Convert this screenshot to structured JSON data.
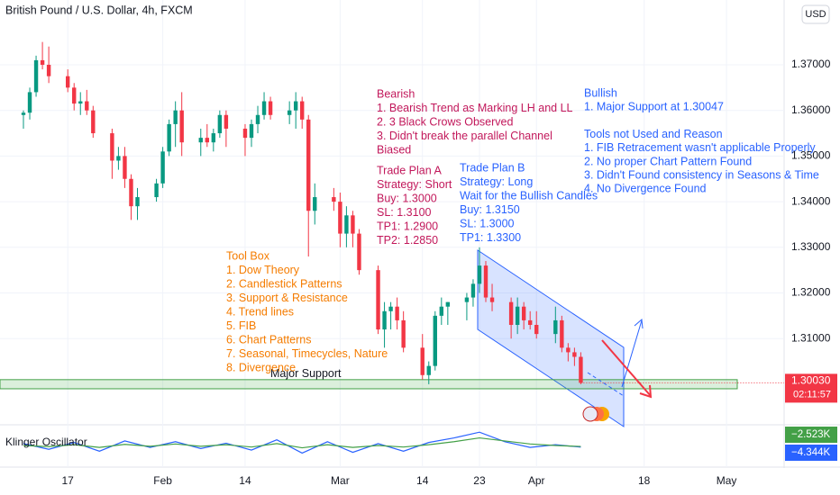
{
  "chart_data": {
    "type": "candlestick",
    "title": "British Pound / U.S. Dollar, 4h, FXCM",
    "currency": "USD",
    "x": [
      10,
      11,
      12,
      13,
      14,
      17,
      18,
      19,
      20,
      21,
      24,
      25,
      26,
      27,
      28,
      31,
      32,
      33,
      34,
      35,
      38,
      39,
      40,
      41,
      42,
      45,
      46,
      47,
      48,
      49,
      52,
      53,
      54,
      55,
      56,
      59,
      60,
      61,
      62,
      63,
      66,
      67,
      68,
      69,
      70,
      73,
      74,
      75,
      76,
      77,
      80,
      81,
      82,
      83,
      84,
      87,
      88,
      89,
      90,
      91,
      94,
      95,
      96,
      97,
      98
    ],
    "open": [
      1.359,
      1.3595,
      1.364,
      1.371,
      1.37,
      1.3675,
      1.365,
      1.3615,
      1.362,
      1.36,
      1.355,
      1.349,
      1.35,
      1.345,
      1.339,
      1.341,
      1.344,
      1.351,
      1.357,
      1.36,
      1.353,
      1.354,
      1.353,
      1.355,
      1.359,
      1.356,
      1.354,
      1.357,
      1.359,
      1.362,
      1.359,
      1.36,
      1.362,
      1.358,
      1.338,
      1.341,
      1.34,
      1.333,
      1.337,
      1.333,
      1.325,
      1.312,
      1.316,
      1.317,
      1.314,
      1.308,
      1.302,
      1.304,
      1.315,
      1.317,
      1.318,
      1.319,
      1.322,
      1.326,
      1.319,
      1.318,
      1.313,
      1.317,
      1.314,
      1.313,
      1.311,
      1.314,
      1.308,
      1.307,
      1.306
    ],
    "high": [
      1.36,
      1.365,
      1.372,
      1.375,
      1.374,
      1.369,
      1.366,
      1.364,
      1.3645,
      1.361,
      1.356,
      1.352,
      1.352,
      1.346,
      1.343,
      1.345,
      1.352,
      1.358,
      1.362,
      1.364,
      1.356,
      1.357,
      1.356,
      1.36,
      1.36,
      1.357,
      1.358,
      1.361,
      1.364,
      1.363,
      1.362,
      1.364,
      1.363,
      1.359,
      1.344,
      1.343,
      1.342,
      1.339,
      1.338,
      1.334,
      1.326,
      1.318,
      1.318,
      1.319,
      1.316,
      1.311,
      1.305,
      1.316,
      1.319,
      1.318,
      1.32,
      1.323,
      1.33,
      1.327,
      1.322,
      1.319,
      1.319,
      1.318,
      1.316,
      1.316,
      1.317,
      1.315,
      1.309,
      1.308,
      1.307
    ],
    "low": [
      1.356,
      1.358,
      1.363,
      1.369,
      1.366,
      1.364,
      1.36,
      1.359,
      1.359,
      1.354,
      1.345,
      1.347,
      1.343,
      1.336,
      1.336,
      1.34,
      1.343,
      1.35,
      1.352,
      1.35,
      1.35,
      1.352,
      1.351,
      1.354,
      1.352,
      1.35,
      1.352,
      1.355,
      1.358,
      1.358,
      1.357,
      1.356,
      1.356,
      1.328,
      1.335,
      1.338,
      1.33,
      1.33,
      1.33,
      1.324,
      1.311,
      1.308,
      1.312,
      1.312,
      1.307,
      1.301,
      1.3,
      1.303,
      1.313,
      1.313,
      1.314,
      1.317,
      1.32,
      1.318,
      1.316,
      1.31,
      1.311,
      1.312,
      1.312,
      1.31,
      1.309,
      1.307,
      1.305,
      1.304,
      1.3
    ],
    "close": [
      1.3595,
      1.364,
      1.371,
      1.37,
      1.3675,
      1.365,
      1.3615,
      1.362,
      1.36,
      1.355,
      1.349,
      1.35,
      1.345,
      1.339,
      1.341,
      1.344,
      1.351,
      1.357,
      1.36,
      1.353,
      1.354,
      1.353,
      1.355,
      1.359,
      1.356,
      1.354,
      1.357,
      1.359,
      1.362,
      1.359,
      1.36,
      1.362,
      1.358,
      1.338,
      1.341,
      1.34,
      1.333,
      1.337,
      1.333,
      1.325,
      1.312,
      1.316,
      1.317,
      1.314,
      1.308,
      1.302,
      1.304,
      1.315,
      1.317,
      1.318,
      1.319,
      1.322,
      1.326,
      1.319,
      1.318,
      1.313,
      1.317,
      1.314,
      1.313,
      1.311,
      1.314,
      1.308,
      1.307,
      1.306,
      1.3003
    ],
    "up_color": "#089981",
    "down_color": "#f23645",
    "xlim": [
      6.3,
      130.1
    ],
    "xticks": [
      {
        "value": 17,
        "label": "17"
      },
      {
        "value": 32,
        "label": "Feb"
      },
      {
        "value": 45,
        "label": "14"
      },
      {
        "value": 60,
        "label": "Mar"
      },
      {
        "value": 73,
        "label": "14"
      },
      {
        "value": 82,
        "label": "23"
      },
      {
        "value": 91,
        "label": "Apr"
      },
      {
        "value": 108,
        "label": "18"
      },
      {
        "value": 121,
        "label": "May"
      }
    ],
    "ylim": [
      1.2915,
      1.3842
    ],
    "yticks": [
      {
        "value": 1.31,
        "label": "1.31000"
      },
      {
        "value": 1.32,
        "label": "1.32000"
      },
      {
        "value": 1.33,
        "label": "1.33000"
      },
      {
        "value": 1.34,
        "label": "1.34000"
      },
      {
        "value": 1.35,
        "label": "1.35000"
      },
      {
        "value": 1.36,
        "label": "1.36000"
      },
      {
        "value": 1.37,
        "label": "1.37000"
      }
    ],
    "grid": true,
    "last_price": {
      "value": 1.3003,
      "label": "1.30030",
      "countdown": "02:11:57"
    },
    "support_zone": {
      "low": 1.299,
      "high": 1.301,
      "label": "Major Support"
    },
    "annotations": [
      {
        "lines": [
          "Bearish",
          "1. Bearish Trend as Marking LH and LL",
          "2. 3 Black Crows Observed",
          "3. Didn't break the parallel Channel",
          "Biased"
        ],
        "color": "#c2185b"
      },
      {
        "lines": [
          "Trade Plan A",
          "Strategy: Short",
          "Buy: 1.3000",
          "SL: 1.3100",
          "TP1: 1.2900",
          "TP2: 1.2850"
        ],
        "color": "#c2185b"
      },
      {
        "lines": [
          "Trade Plan B",
          "Strategy: Long",
          "Wait for the Bullish Candles",
          "Buy: 1.3150",
          "SL: 1.3000",
          "TP1: 1.3300"
        ],
        "color": "#2962ff"
      },
      {
        "lines": [
          "Bullish",
          "1. Major Support at 1.30047",
          "",
          "Tools not Used and Reason",
          "1. FIB Retracement wasn't applicable Properly",
          "2. No proper Chart Pattern Found",
          "3. Didn't Found consistency in Seasons & Time",
          "4. No Divergence Found"
        ],
        "color": "#2962ff"
      },
      {
        "lines": [
          "Tool Box",
          "1. Dow Theory",
          "2. Candlestick Patterns",
          "3. Support & Resistance",
          "4. Trend lines",
          "5. FIB",
          "6. Chart Patterns",
          "7. Seasonal, Timecycles, Nature",
          "8. Divergence"
        ],
        "color": "#f57c00"
      }
    ],
    "oscillator": {
      "name": "Klinger Oscillator",
      "ylim": [
        -45,
        45
      ],
      "x": [
        10,
        14,
        18,
        22,
        26,
        30,
        34,
        38,
        42,
        46,
        50,
        54,
        58,
        62,
        66,
        70,
        74,
        78,
        82,
        86,
        90,
        94,
        98
      ],
      "series": [
        {
          "color": "#2962ff",
          "values": [
            5,
            -10,
            8,
            -15,
            12,
            -5,
            10,
            -8,
            6,
            -12,
            15,
            -20,
            10,
            -18,
            5,
            -15,
            8,
            20,
            35,
            10,
            -5,
            2,
            -4.344
          ],
          "last_label": "−4.344K"
        },
        {
          "color": "#43a047",
          "values": [
            0,
            -3,
            2,
            -5,
            3,
            -2,
            4,
            -2,
            2,
            -4,
            5,
            -6,
            2,
            -5,
            0,
            -4,
            2,
            10,
            20,
            12,
            4,
            0,
            -2.523
          ],
          "last_label": "−2.523K"
        }
      ]
    }
  }
}
